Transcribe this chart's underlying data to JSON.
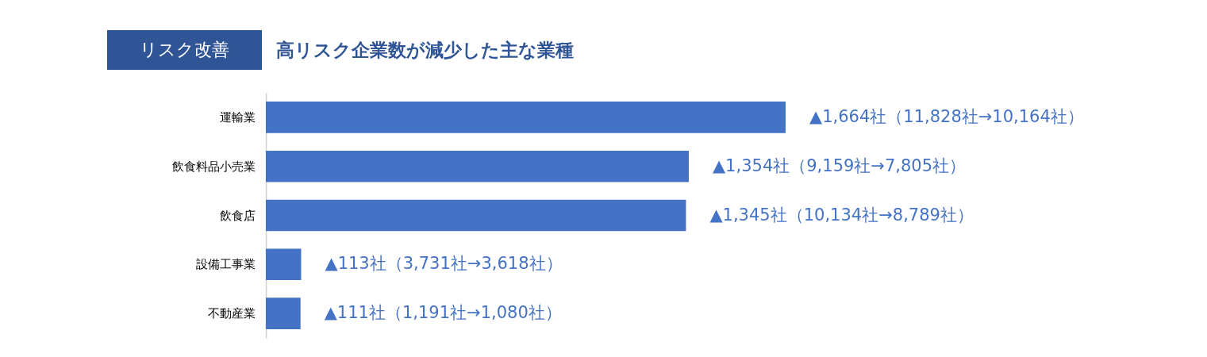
{
  "chart_data": {
    "type": "bar",
    "orientation": "horizontal",
    "title": "リスク改善",
    "subtitle": "高リスク企業数が減少した主な業種",
    "categories": [
      "運輸業",
      "飲食料品小売業",
      "飲食店",
      "設備工事業",
      "不動産業"
    ],
    "values": [
      1664,
      1354,
      1345,
      113,
      111
    ],
    "value_labels": [
      "▲1,664社（11,828社→10,164社）",
      "▲1,354社（9,159社→7,805社）",
      "▲1,345社（10,134社→8,789社）",
      "▲113社（3,731社→3,618社）",
      "▲111社（1,191社→1,080社）"
    ],
    "color": "#4472c4"
  }
}
